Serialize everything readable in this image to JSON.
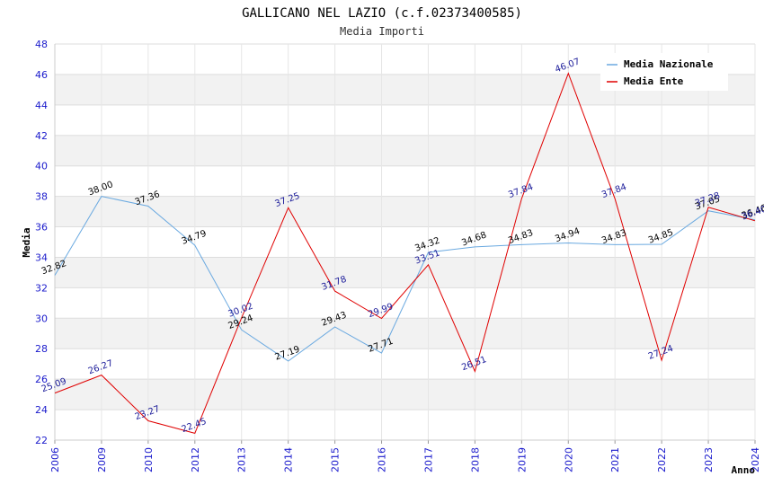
{
  "chart_data": {
    "type": "line",
    "title": "GALLICANO NEL LAZIO (c.f.02373400585)",
    "subtitle": "Media Importi",
    "xlabel": "Anno",
    "ylabel": "Media",
    "ylim": [
      22,
      48
    ],
    "yticks": [
      22,
      24,
      26,
      28,
      30,
      32,
      34,
      36,
      38,
      40,
      42,
      44,
      46,
      48
    ],
    "categories": [
      "2006",
      "2009",
      "2010",
      "2012",
      "2013",
      "2014",
      "2015",
      "2016",
      "2017",
      "2018",
      "2019",
      "2020",
      "2021",
      "2022",
      "2023",
      "2024"
    ],
    "series": [
      {
        "name": "Media Nazionale",
        "color": "#6aa9e0",
        "label_color": "#000000",
        "values": [
          32.82,
          38.0,
          37.36,
          34.79,
          29.24,
          27.19,
          29.43,
          27.71,
          34.32,
          34.68,
          34.83,
          34.94,
          34.83,
          34.85,
          37.05,
          36.46
        ],
        "labels": [
          "32.82",
          "38.00",
          "37.36",
          "34.79",
          "29.24",
          "27.19",
          "29.43",
          "27.71",
          "34.32",
          "34.68",
          "34.83",
          "34.94",
          "34.83",
          "34.85",
          "37.05",
          "36.46"
        ]
      },
      {
        "name": "Media Ente",
        "color": "#e00000",
        "label_color": "#1a1a99",
        "values": [
          25.09,
          26.27,
          23.27,
          22.45,
          30.02,
          37.25,
          31.78,
          29.99,
          33.51,
          26.51,
          37.84,
          46.07,
          37.84,
          27.24,
          37.28,
          36.4
        ],
        "labels": [
          "25.09",
          "26.27",
          "23.27",
          "22.45",
          "30.02",
          "37.25",
          "31.78",
          "29.99",
          "33.51",
          "26.51",
          "37.84",
          "46.07",
          "37.84",
          "27.24",
          "37.28",
          "36.40"
        ]
      }
    ],
    "legend_position": "top-right",
    "grid": true
  }
}
